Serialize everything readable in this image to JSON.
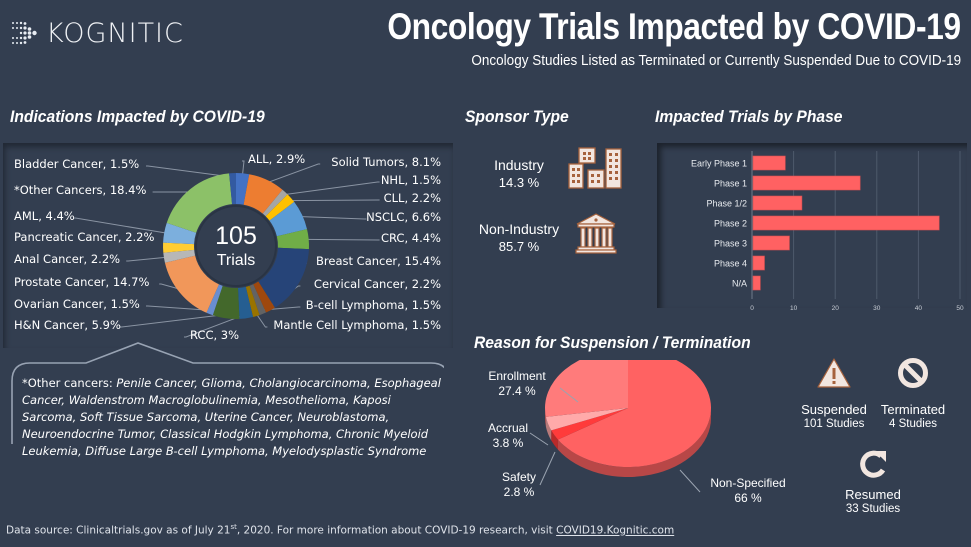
{
  "header": {
    "logo_text": "KOGNITIC",
    "title": "Oncology Trials Impacted by COVID-19",
    "subtitle": "Oncology Studies Listed as Terminated or Currently Suspended Due to COVID-19"
  },
  "indications": {
    "section_title": "Indications Impacted by COVID-19",
    "center_value": "105",
    "center_label": "Trials",
    "other_note_prefix": "*Other cancers: ",
    "other_note_list": "Penile Cancer, Glioma, Cholangiocarcinoma, Esophageal Cancer, Waldenstrom Macroglobulinemia, Mesothelioma, Kaposi Sarcoma, Soft Tissue Sarcoma, Uterine Cancer, Neuroblastoma, Neuroendocrine Tumor, Classical Hodgkin Lymphoma, Chronic Myeloid Leukemia, Diffuse Large B-cell Lymphoma, Myelodysplastic Syndrome"
  },
  "sponsor": {
    "section_title": "Sponsor Type",
    "items": [
      {
        "label": "Industry",
        "value": "14.3  %",
        "icon": "buildings-icon"
      },
      {
        "label": "Non-Industry",
        "value": "85.7  %",
        "icon": "institution-icon"
      }
    ]
  },
  "phase": {
    "section_title": "Impacted Trials by Phase"
  },
  "reason": {
    "section_title": "Reason for Suspension / Termination"
  },
  "status": {
    "items": [
      {
        "label": "Suspended",
        "count": "101 Studies",
        "icon": "warning-icon"
      },
      {
        "label": "Terminated",
        "count": "4 Studies",
        "icon": "prohibited-icon"
      },
      {
        "label": "Resumed",
        "count": "33 Studies",
        "icon": "refresh-icon"
      }
    ]
  },
  "footer": {
    "text_before": "Data source: Clinicaltrials.gov as of July 21",
    "sup": "st",
    "text_after": ", 2020. For more information about COVID-19 research, visit ",
    "link": "COVID19.Kognitic.com"
  },
  "colors": {
    "background": "#333e50",
    "bar": "#ff6162",
    "icon_fill": "#f2e6e0",
    "icon_stroke": "#a6623d"
  },
  "chart_data": [
    {
      "type": "pie",
      "variant": "donut",
      "title": "Indications Impacted by COVID-19",
      "unit": "%",
      "slices": [
        {
          "label": "ALL",
          "value": 2.9,
          "text": "ALL, 2.9%",
          "color": "#4472c4"
        },
        {
          "label": "Solid Tumors",
          "value": 8.1,
          "text": "Solid Tumors, 8.1%",
          "color": "#ed7d31"
        },
        {
          "label": "NHL",
          "value": 1.5,
          "text": "NHL, 1.5%",
          "color": "#a5a5a5"
        },
        {
          "label": "CLL",
          "value": 2.2,
          "text": "CLL, 2.2%",
          "color": "#ffc000"
        },
        {
          "label": "NSCLC",
          "value": 6.6,
          "text": "NSCLC, 6.6%",
          "color": "#5b9bd5"
        },
        {
          "label": "CRC",
          "value": 4.4,
          "text": "CRC, 4.4%",
          "color": "#70ad47"
        },
        {
          "label": "Breast Cancer",
          "value": 15.4,
          "text": "Breast Cancer, 15.4%",
          "color": "#264478"
        },
        {
          "label": "Cervical Cancer",
          "value": 2.2,
          "text": "Cervical Cancer, 2.2%",
          "color": "#9e480e"
        },
        {
          "label": "B-cell Lymphoma",
          "value": 1.5,
          "text": "B-cell Lymphoma, 1.5%",
          "color": "#636363"
        },
        {
          "label": "Mantle Cell Lymphoma",
          "value": 1.5,
          "text": "Mantle Cell Lymphoma, 1.5%",
          "color": "#997300"
        },
        {
          "label": "RCC",
          "value": 3.0,
          "text": "RCC, 3%",
          "color": "#255e91"
        },
        {
          "label": "H&N Cancer",
          "value": 5.9,
          "text": "H&N Cancer, 5.9%",
          "color": "#43682b"
        },
        {
          "label": "Ovarian Cancer",
          "value": 1.5,
          "text": "Ovarian Cancer, 1.5%",
          "color": "#698ed0"
        },
        {
          "label": "Prostate Cancer",
          "value": 14.7,
          "text": "Prostate Cancer, 14.7%",
          "color": "#f1975a"
        },
        {
          "label": "Anal Cancer",
          "value": 2.2,
          "text": "Anal Cancer, 2.2%",
          "color": "#b7b7b7"
        },
        {
          "label": "Pancreatic Cancer",
          "value": 2.2,
          "text": "Pancreatic Cancer, 2.2%",
          "color": "#ffcd33"
        },
        {
          "label": "AML",
          "value": 4.4,
          "text": "AML, 4.4%",
          "color": "#7cafdd"
        },
        {
          "label": "*Other Cancers",
          "value": 18.4,
          "text": "*Other Cancers, 18.4%",
          "color": "#8cc168"
        },
        {
          "label": "Bladder Cancer",
          "value": 1.5,
          "text": "Bladder Cancer, 1.5%",
          "color": "#335aa1"
        }
      ]
    },
    {
      "type": "bar",
      "orientation": "horizontal",
      "title": "Impacted Trials by Phase",
      "categories": [
        "Early Phase 1",
        "Phase 1",
        "Phase 1/2",
        "Phase 2",
        "Phase 3",
        "Phase 4",
        "N/A"
      ],
      "values": [
        8,
        26,
        12,
        45,
        9,
        3,
        2
      ],
      "xlim": [
        0,
        50
      ],
      "xticks": [
        0,
        10,
        20,
        30,
        40,
        50
      ],
      "grid": true,
      "color": "#ff6162"
    },
    {
      "type": "pie",
      "variant": "3d",
      "title": "Reason for Suspension / Termination",
      "unit": "%",
      "slices": [
        {
          "label": "Non-Specified",
          "value": 66,
          "text": "66 %",
          "color": "#ff6262"
        },
        {
          "label": "Safety",
          "value": 2.8,
          "text": "2.8 %",
          "color": "#ff3b3b"
        },
        {
          "label": "Accrual",
          "value": 3.8,
          "text": "3.8 %",
          "color": "#ffaaaa"
        },
        {
          "label": "Enrollment",
          "value": 27.4,
          "text": "27.4 %",
          "color": "#ff7b7b"
        }
      ]
    }
  ]
}
